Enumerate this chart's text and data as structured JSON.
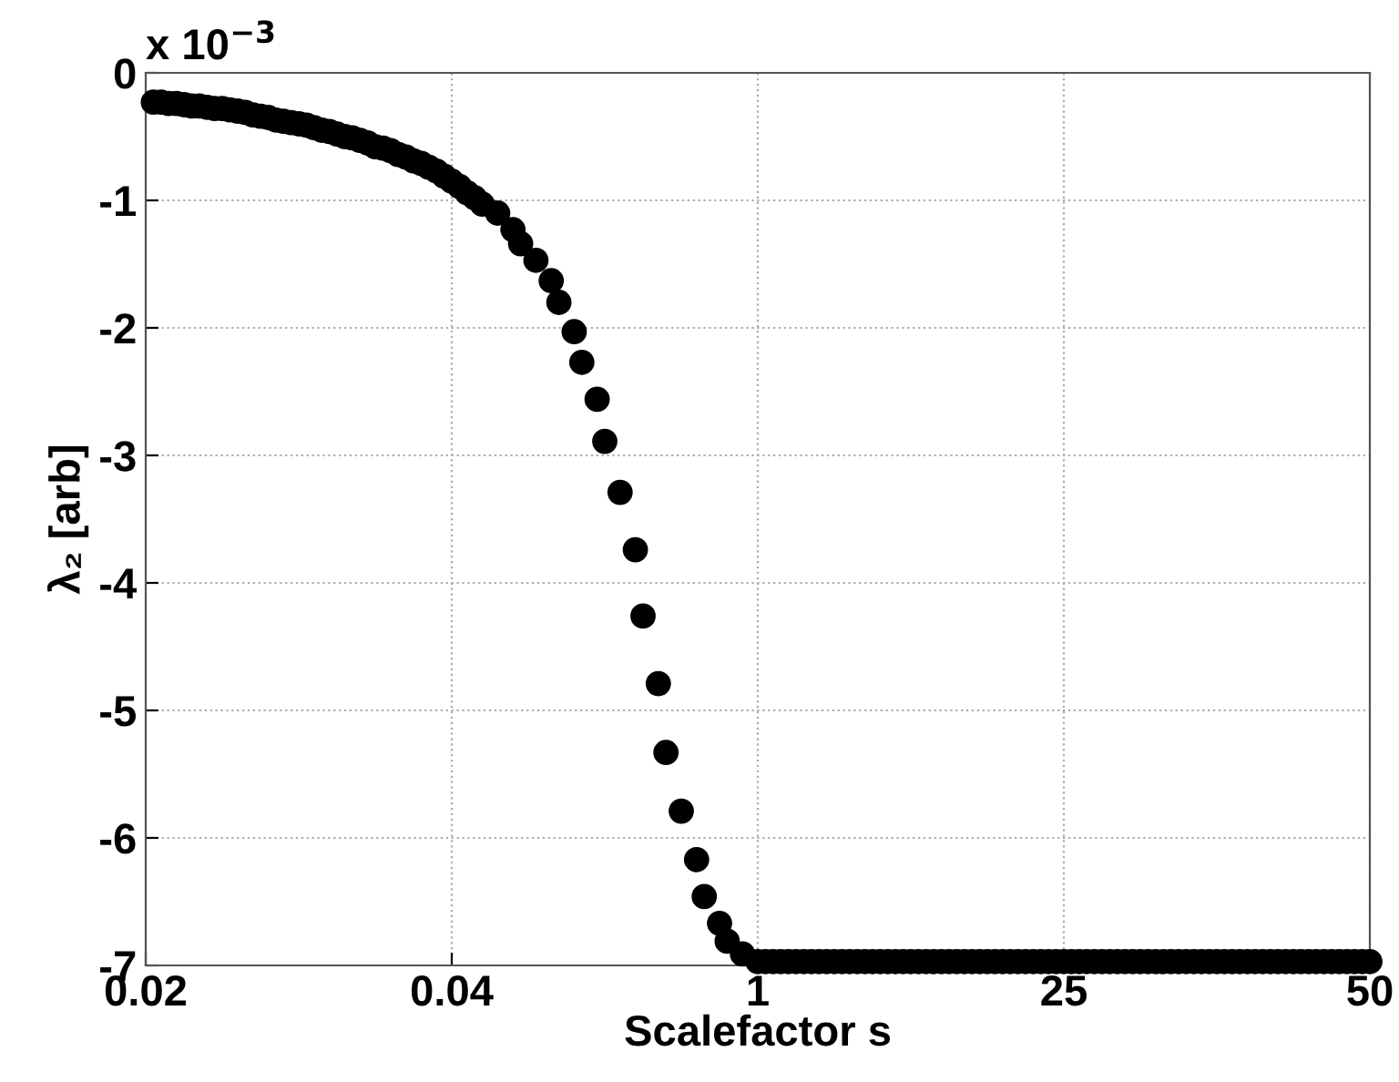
{
  "chart_data": {
    "type": "scatter",
    "xlabel": "Scalefactor s",
    "ylabel": "λ₂ [arb]",
    "annotations": [
      "x 10$^{−3}$"
    ],
    "categories": [
      "0.02",
      null,
      null,
      null,
      null,
      null,
      null,
      null,
      null,
      null,
      null,
      null,
      null,
      null,
      null,
      null,
      null,
      null,
      null,
      null,
      null,
      null,
      null,
      null,
      null,
      null,
      null,
      null,
      null,
      null,
      null,
      null,
      null,
      null,
      null,
      null,
      null,
      null,
      null,
      null,
      "0.04",
      null,
      null,
      null,
      null,
      null,
      null,
      null,
      null,
      null,
      null,
      null,
      null,
      null,
      null,
      null,
      null,
      null,
      null,
      null,
      null,
      null,
      null,
      null,
      null,
      null,
      null,
      null,
      null,
      null,
      null,
      null,
      null,
      null,
      null,
      null,
      null,
      null,
      null,
      null,
      "1",
      null,
      null,
      null,
      null,
      null,
      null,
      null,
      null,
      null,
      null,
      null,
      null,
      null,
      null,
      null,
      null,
      null,
      null,
      null,
      null,
      null,
      null,
      null,
      null,
      null,
      null,
      null,
      null,
      null,
      null,
      null,
      null,
      null,
      null,
      null,
      null,
      null,
      null,
      null,
      "25",
      null,
      null,
      null,
      null,
      null,
      null,
      null,
      null,
      null,
      null,
      null,
      null,
      null,
      null,
      null,
      null,
      null,
      null,
      null,
      null,
      null,
      null,
      null,
      null,
      null,
      null,
      null,
      null,
      null,
      null,
      null,
      null,
      null,
      null,
      null,
      null,
      null,
      null,
      null,
      "50"
    ],
    "ylim": [
      -7,
      0
    ],
    "yticks": [
      -7,
      -6,
      -5,
      -4,
      -3,
      -2,
      -1,
      0
    ],
    "grid": true,
    "marker": "circle",
    "series": [
      {
        "color": "#000000",
        "values": [
          null,
          -0.23,
          -0.23,
          -0.24,
          -0.24,
          -0.25,
          -0.26,
          -0.26,
          -0.27,
          -0.28,
          -0.28,
          -0.29,
          -0.3,
          -0.31,
          -0.33,
          -0.34,
          -0.35,
          -0.37,
          -0.38,
          -0.39,
          -0.4,
          -0.41,
          -0.43,
          -0.45,
          -0.46,
          -0.48,
          -0.5,
          -0.51,
          -0.53,
          -0.55,
          -0.58,
          -0.59,
          -0.61,
          -0.64,
          -0.66,
          -0.69,
          -0.71,
          -0.74,
          -0.77,
          -0.81,
          -0.85,
          -0.89,
          -0.94,
          -0.98,
          -1.03,
          null,
          -1.1,
          null,
          -1.23,
          -1.34,
          null,
          -1.47,
          null,
          -1.63,
          -1.8,
          null,
          -2.03,
          -2.27,
          null,
          -2.56,
          -2.89,
          null,
          -3.29,
          null,
          -3.74,
          -4.26,
          null,
          -4.79,
          -5.33,
          null,
          -5.79,
          null,
          -6.17,
          -6.46,
          null,
          -6.67,
          -6.81,
          null,
          -6.91,
          null,
          -6.97,
          -6.97,
          -6.97,
          -6.97,
          -6.97,
          -6.97,
          -6.97,
          -6.97,
          -6.97,
          -6.97,
          -6.97,
          -6.97,
          -6.97,
          -6.97,
          -6.97,
          -6.97,
          -6.97,
          -6.97,
          -6.97,
          -6.97,
          -6.97,
          -6.97,
          -6.97,
          -6.97,
          -6.97,
          -6.97,
          -6.97,
          -6.97,
          -6.97,
          -6.97,
          -6.97,
          -6.97,
          -6.97,
          -6.97,
          -6.97,
          -6.97,
          -6.97,
          -6.97,
          -6.97,
          -6.97,
          -6.97,
          -6.97,
          -6.97,
          -6.97,
          -6.97,
          -6.97,
          -6.97,
          -6.97,
          -6.97,
          -6.97,
          -6.97,
          -6.97,
          -6.97,
          -6.97,
          -6.97,
          -6.97,
          -6.97,
          -6.97,
          -6.97,
          -6.97,
          -6.97,
          -6.97,
          -6.97,
          -6.97,
          -6.97,
          -6.97,
          -6.97,
          -6.97,
          -6.97,
          -6.97,
          -6.97,
          -6.97,
          -6.97,
          -6.97,
          -6.97,
          -6.97,
          -6.97,
          -6.97,
          -6.97,
          -6.97,
          -6.97
        ]
      }
    ]
  }
}
